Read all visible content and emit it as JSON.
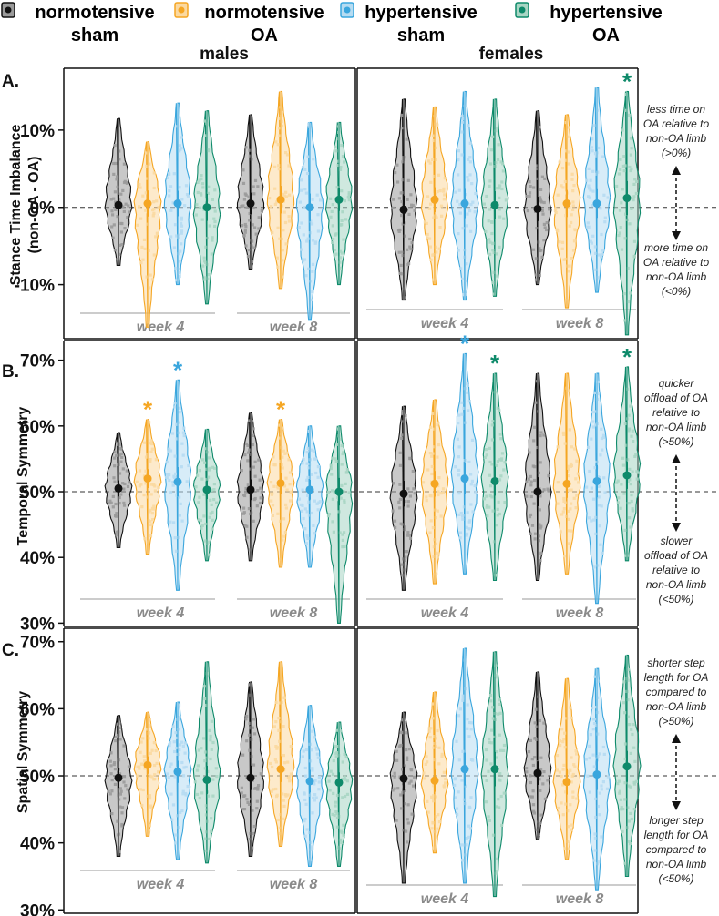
{
  "legend": [
    {
      "line1": "normotensive",
      "line2": "sham",
      "color": "#111111",
      "fill": "#9a9a9a"
    },
    {
      "line1": "normotensive",
      "line2": "OA",
      "color": "#f5a623",
      "fill": "#fbd9a0"
    },
    {
      "line1": "hypertensive",
      "line2": "sham",
      "color": "#3aa6dd",
      "fill": "#b6dcf2"
    },
    {
      "line1": "hypertensive",
      "line2": "OA",
      "color": "#0e8a6a",
      "fill": "#a8d6c4"
    }
  ],
  "columns": {
    "males": "males",
    "females": "females"
  },
  "weeks": [
    "week 4",
    "week 8"
  ],
  "asterisk": "*",
  "chart_data": [
    {
      "type": "violin",
      "panel": "A.",
      "ylabel_line1": "Stance Time Imbalance",
      "ylabel_line2": "(non-OA - OA)",
      "ylim": [
        -17,
        18
      ],
      "yticks": [
        10,
        0,
        -10
      ],
      "ytick_labels": [
        "10%",
        "0%",
        "-10%"
      ],
      "reference_line": 0,
      "annotation_top": [
        "less time on",
        "OA relative to",
        "non-OA limb",
        "(>0%)"
      ],
      "annotation_bottom": [
        "more time on",
        "OA relative to",
        "non-OA limb",
        "(<0%)"
      ],
      "groups": [
        {
          "sex": "males",
          "week": "week 4",
          "group": "normotensive sham",
          "mean": 0.3,
          "min": -7.5,
          "max": 11.5,
          "significant": false
        },
        {
          "sex": "males",
          "week": "week 4",
          "group": "normotensive OA",
          "mean": 0.5,
          "min": -15.5,
          "max": 8.5,
          "significant": false
        },
        {
          "sex": "males",
          "week": "week 4",
          "group": "hypertensive sham",
          "mean": 0.5,
          "min": -10,
          "max": 13.5,
          "significant": false
        },
        {
          "sex": "males",
          "week": "week 4",
          "group": "hypertensive OA",
          "mean": 0,
          "min": -12.5,
          "max": 12.5,
          "significant": false
        },
        {
          "sex": "males",
          "week": "week 8",
          "group": "normotensive sham",
          "mean": 0.5,
          "min": -8,
          "max": 12,
          "significant": false
        },
        {
          "sex": "males",
          "week": "week 8",
          "group": "normotensive OA",
          "mean": 1,
          "min": -10.5,
          "max": 15,
          "significant": false
        },
        {
          "sex": "males",
          "week": "week 8",
          "group": "hypertensive sham",
          "mean": 0,
          "min": -14.5,
          "max": 11,
          "significant": false
        },
        {
          "sex": "males",
          "week": "week 8",
          "group": "hypertensive OA",
          "mean": 1,
          "min": -10,
          "max": 11,
          "significant": false
        },
        {
          "sex": "females",
          "week": "week 4",
          "group": "normotensive sham",
          "mean": -0.3,
          "min": -12,
          "max": 14,
          "significant": false
        },
        {
          "sex": "females",
          "week": "week 4",
          "group": "normotensive OA",
          "mean": 1,
          "min": -10,
          "max": 13,
          "significant": false
        },
        {
          "sex": "females",
          "week": "week 4",
          "group": "hypertensive sham",
          "mean": 0.5,
          "min": -12,
          "max": 15,
          "significant": false
        },
        {
          "sex": "females",
          "week": "week 4",
          "group": "hypertensive OA",
          "mean": 0.3,
          "min": -11.5,
          "max": 14,
          "significant": false
        },
        {
          "sex": "females",
          "week": "week 8",
          "group": "normotensive sham",
          "mean": -0.2,
          "min": -10,
          "max": 12.5,
          "significant": false
        },
        {
          "sex": "females",
          "week": "week 8",
          "group": "normotensive OA",
          "mean": 0.5,
          "min": -13,
          "max": 12,
          "significant": false
        },
        {
          "sex": "females",
          "week": "week 8",
          "group": "hypertensive sham",
          "mean": 0.5,
          "min": -11,
          "max": 15.5,
          "significant": false
        },
        {
          "sex": "females",
          "week": "week 8",
          "group": "hypertensive OA",
          "mean": 1.2,
          "min": -16.5,
          "max": 15,
          "significant": true
        }
      ]
    },
    {
      "type": "violin",
      "panel": "B.",
      "ylabel_line1": "Temporal Symmetry",
      "ylabel_line2": "",
      "ylim": [
        29.5,
        73
      ],
      "yticks": [
        70,
        60,
        50,
        40,
        30
      ],
      "ytick_labels": [
        "70%",
        "60%",
        "50%",
        "40%",
        "30%"
      ],
      "reference_line": 50,
      "annotation_top": [
        "quicker",
        "offload of OA",
        "relative to",
        "non-OA limb",
        "(>50%)"
      ],
      "annotation_bottom": [
        "slower",
        "offload of OA",
        "relative to",
        "non-OA limb",
        "(<50%)"
      ],
      "groups": [
        {
          "sex": "males",
          "week": "week 4",
          "group": "normotensive sham",
          "mean": 50.5,
          "min": 41.5,
          "max": 59,
          "significant": false
        },
        {
          "sex": "males",
          "week": "week 4",
          "group": "normotensive OA",
          "mean": 52,
          "min": 40.5,
          "max": 61,
          "significant": true
        },
        {
          "sex": "males",
          "week": "week 4",
          "group": "hypertensive sham",
          "mean": 51.5,
          "min": 35,
          "max": 67,
          "significant": true
        },
        {
          "sex": "males",
          "week": "week 4",
          "group": "hypertensive OA",
          "mean": 50.3,
          "min": 39.5,
          "max": 59.5,
          "significant": false
        },
        {
          "sex": "males",
          "week": "week 8",
          "group": "normotensive sham",
          "mean": 50.3,
          "min": 39.5,
          "max": 62,
          "significant": false
        },
        {
          "sex": "males",
          "week": "week 8",
          "group": "normotensive OA",
          "mean": 51.3,
          "min": 38.5,
          "max": 61,
          "significant": true
        },
        {
          "sex": "males",
          "week": "week 8",
          "group": "hypertensive sham",
          "mean": 50.3,
          "min": 38.5,
          "max": 60,
          "significant": false
        },
        {
          "sex": "males",
          "week": "week 8",
          "group": "hypertensive OA",
          "mean": 50,
          "min": 30,
          "max": 60,
          "significant": false
        },
        {
          "sex": "females",
          "week": "week 4",
          "group": "normotensive sham",
          "mean": 49.7,
          "min": 35,
          "max": 63,
          "significant": false
        },
        {
          "sex": "females",
          "week": "week 4",
          "group": "normotensive OA",
          "mean": 51.2,
          "min": 36,
          "max": 64,
          "significant": false
        },
        {
          "sex": "females",
          "week": "week 4",
          "group": "hypertensive sham",
          "mean": 52,
          "min": 37.5,
          "max": 71,
          "significant": true
        },
        {
          "sex": "females",
          "week": "week 4",
          "group": "hypertensive OA",
          "mean": 51.6,
          "min": 36.5,
          "max": 68,
          "significant": true
        },
        {
          "sex": "females",
          "week": "week 8",
          "group": "normotensive sham",
          "mean": 50,
          "min": 36.5,
          "max": 68,
          "significant": false
        },
        {
          "sex": "females",
          "week": "week 8",
          "group": "normotensive OA",
          "mean": 51.2,
          "min": 37.5,
          "max": 68,
          "significant": false
        },
        {
          "sex": "females",
          "week": "week 8",
          "group": "hypertensive sham",
          "mean": 51.6,
          "min": 33,
          "max": 68,
          "significant": false
        },
        {
          "sex": "females",
          "week": "week 8",
          "group": "hypertensive OA",
          "mean": 52.5,
          "min": 39.5,
          "max": 69,
          "significant": true
        }
      ]
    },
    {
      "type": "violin",
      "panel": "C.",
      "ylabel_line1": "Spatial Symmetry",
      "ylabel_line2": "",
      "ylim": [
        29.5,
        72
      ],
      "yticks": [
        70,
        60,
        50,
        40,
        30
      ],
      "ytick_labels": [
        "70%",
        "60%",
        "50%",
        "40%",
        "30%"
      ],
      "reference_line": 50,
      "annotation_top": [
        "shorter step",
        "length for OA",
        "compared to",
        "non-OA limb",
        "(>50%)"
      ],
      "annotation_bottom": [
        "longer step",
        "length for OA",
        "compared to",
        "non-OA limb",
        "(<50%)"
      ],
      "groups": [
        {
          "sex": "males",
          "week": "week 4",
          "group": "normotensive sham",
          "mean": 49.7,
          "min": 38,
          "max": 59,
          "significant": false
        },
        {
          "sex": "males",
          "week": "week 4",
          "group": "normotensive OA",
          "mean": 51.6,
          "min": 41,
          "max": 59.5,
          "significant": false
        },
        {
          "sex": "males",
          "week": "week 4",
          "group": "hypertensive sham",
          "mean": 50.6,
          "min": 37.5,
          "max": 61,
          "significant": false
        },
        {
          "sex": "males",
          "week": "week 4",
          "group": "hypertensive OA",
          "mean": 49.4,
          "min": 37,
          "max": 67,
          "significant": false
        },
        {
          "sex": "males",
          "week": "week 8",
          "group": "normotensive sham",
          "mean": 49.7,
          "min": 38,
          "max": 64,
          "significant": false
        },
        {
          "sex": "males",
          "week": "week 8",
          "group": "normotensive OA",
          "mean": 51,
          "min": 39.5,
          "max": 67,
          "significant": false
        },
        {
          "sex": "males",
          "week": "week 8",
          "group": "hypertensive sham",
          "mean": 49.2,
          "min": 36.5,
          "max": 60.5,
          "significant": false
        },
        {
          "sex": "males",
          "week": "week 8",
          "group": "hypertensive OA",
          "mean": 49,
          "min": 36.5,
          "max": 58,
          "significant": false
        },
        {
          "sex": "females",
          "week": "week 4",
          "group": "normotensive sham",
          "mean": 49.6,
          "min": 34,
          "max": 59.5,
          "significant": false
        },
        {
          "sex": "females",
          "week": "week 4",
          "group": "normotensive OA",
          "mean": 49.3,
          "min": 38.5,
          "max": 62.5,
          "significant": false
        },
        {
          "sex": "females",
          "week": "week 4",
          "group": "hypertensive sham",
          "mean": 51,
          "min": 34,
          "max": 69,
          "significant": false
        },
        {
          "sex": "females",
          "week": "week 4",
          "group": "hypertensive OA",
          "mean": 51,
          "min": 32,
          "max": 68.5,
          "significant": false
        },
        {
          "sex": "females",
          "week": "week 8",
          "group": "normotensive sham",
          "mean": 50.4,
          "min": 40.5,
          "max": 65.5,
          "significant": false
        },
        {
          "sex": "females",
          "week": "week 8",
          "group": "normotensive OA",
          "mean": 49.1,
          "min": 37.5,
          "max": 64.5,
          "significant": false
        },
        {
          "sex": "females",
          "week": "week 8",
          "group": "hypertensive sham",
          "mean": 50.2,
          "min": 33,
          "max": 66,
          "significant": false
        },
        {
          "sex": "females",
          "week": "week 8",
          "group": "hypertensive OA",
          "mean": 51.4,
          "min": 35,
          "max": 68,
          "significant": false
        }
      ]
    }
  ]
}
